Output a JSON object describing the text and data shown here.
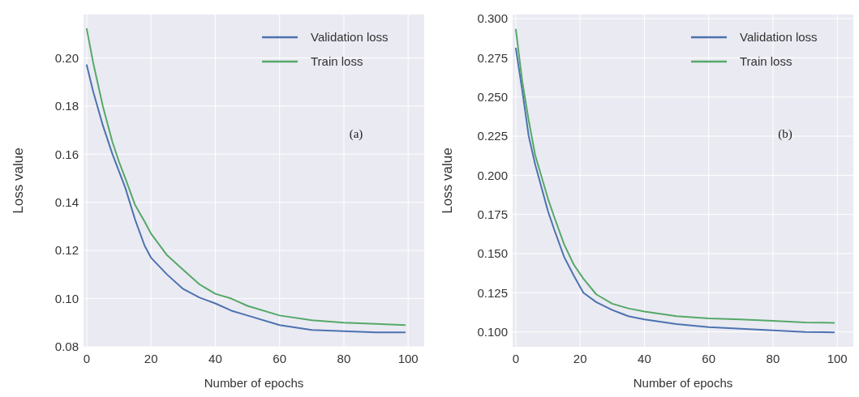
{
  "chart_data": [
    {
      "type": "line",
      "xlabel": "Number of epochs",
      "ylabel": "Loss value",
      "annotations": [
        "(a)"
      ],
      "xlim": [
        -1,
        105
      ],
      "ylim": [
        0.08,
        0.218
      ],
      "xticks": [
        0,
        20,
        40,
        60,
        80,
        100
      ],
      "yticks": [
        {
          "value": 0.08,
          "label": "0.08"
        },
        {
          "value": 0.1,
          "label": "0.10"
        },
        {
          "value": 0.12,
          "label": "0.12"
        },
        {
          "value": 0.14,
          "label": "0.14"
        },
        {
          "value": 0.16,
          "label": "0.16"
        },
        {
          "value": 0.18,
          "label": "0.18"
        },
        {
          "value": 0.2,
          "label": "0.20"
        }
      ],
      "grid": true,
      "legend": "top right",
      "line_style": "solid",
      "x": [
        0,
        2,
        5,
        8,
        10,
        12,
        15,
        18,
        20,
        25,
        30,
        35,
        40,
        45,
        50,
        60,
        70,
        80,
        90,
        99
      ],
      "series": [
        {
          "name": "Validation loss",
          "color": "#4c72b0",
          "values": [
            0.197,
            0.186,
            0.172,
            0.16,
            0.153,
            0.146,
            0.133,
            0.122,
            0.117,
            0.11,
            0.104,
            0.1005,
            0.098,
            0.095,
            0.093,
            0.089,
            0.087,
            0.0865,
            0.086,
            0.086
          ]
        },
        {
          "name": "Train loss",
          "color": "#55a868",
          "values": [
            0.212,
            0.198,
            0.18,
            0.165,
            0.157,
            0.15,
            0.139,
            0.132,
            0.127,
            0.118,
            0.112,
            0.106,
            0.102,
            0.1,
            0.097,
            0.093,
            0.091,
            0.09,
            0.0895,
            0.089
          ]
        }
      ]
    },
    {
      "type": "line",
      "xlabel": "Number of epochs",
      "ylabel": "Loss value",
      "annotations": [
        "(b)"
      ],
      "xlim": [
        -1,
        105
      ],
      "ylim": [
        0.0905,
        0.3026
      ],
      "xticks": [
        0,
        20,
        40,
        60,
        80,
        100
      ],
      "yticks": [
        {
          "value": 0.1,
          "label": "0.100"
        },
        {
          "value": 0.125,
          "label": "0.125"
        },
        {
          "value": 0.15,
          "label": "0.150"
        },
        {
          "value": 0.175,
          "label": "0.175"
        },
        {
          "value": 0.2,
          "label": "0.200"
        },
        {
          "value": 0.225,
          "label": "0.225"
        },
        {
          "value": 0.25,
          "label": "0.250"
        },
        {
          "value": 0.275,
          "label": "0.275"
        },
        {
          "value": 0.3,
          "label": "0.300"
        }
      ],
      "grid": true,
      "legend": "top right",
      "line_style": "solid",
      "x": [
        0,
        2,
        4,
        6,
        8,
        10,
        12,
        15,
        18,
        21,
        25,
        30,
        35,
        40,
        50,
        60,
        70,
        80,
        90,
        99
      ],
      "series": [
        {
          "name": "Validation loss",
          "color": "#4c72b0",
          "values": [
            0.281,
            0.254,
            0.225,
            0.207,
            0.192,
            0.177,
            0.165,
            0.148,
            0.136,
            0.125,
            0.119,
            0.114,
            0.11,
            0.108,
            0.105,
            0.103,
            0.102,
            0.101,
            0.1,
            0.0997
          ]
        },
        {
          "name": "Train loss",
          "color": "#55a868",
          "values": [
            0.293,
            0.26,
            0.235,
            0.213,
            0.199,
            0.185,
            0.173,
            0.156,
            0.143,
            0.134,
            0.124,
            0.118,
            0.115,
            0.113,
            0.11,
            0.1086,
            0.108,
            0.107,
            0.106,
            0.1058
          ]
        }
      ]
    }
  ]
}
